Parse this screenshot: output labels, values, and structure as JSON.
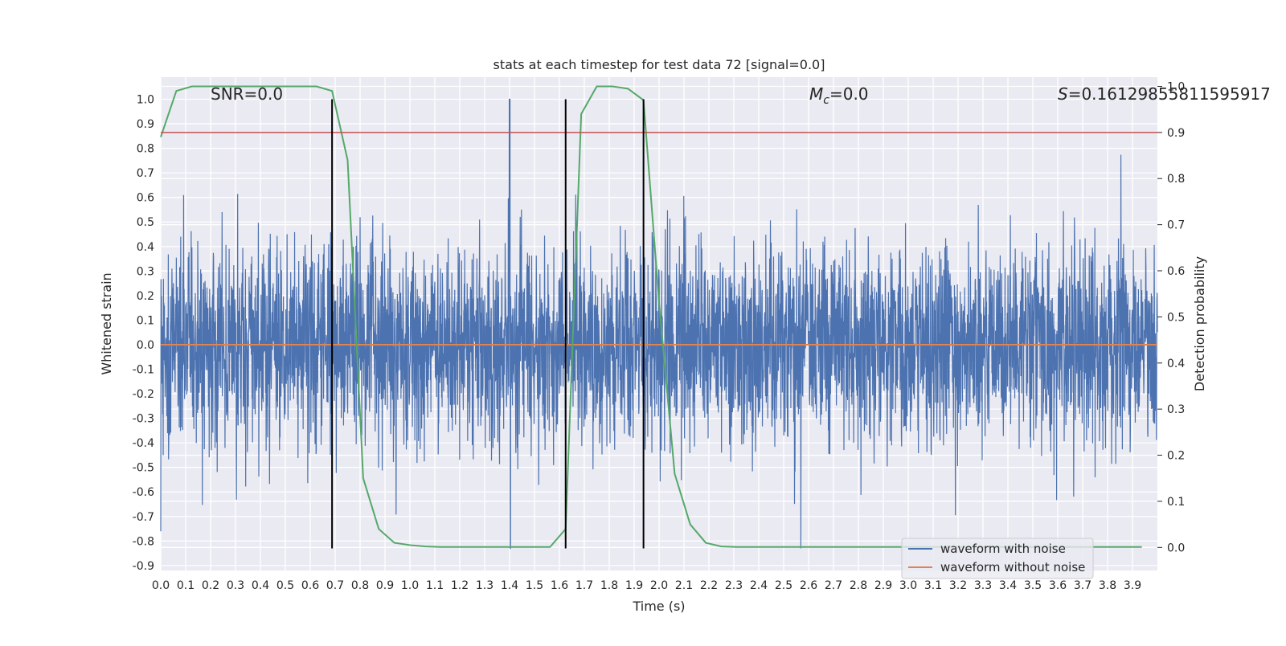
{
  "chart_data": {
    "type": "line",
    "title": "stats at each timestep for test data 72 [signal=0.0]",
    "xlabel": "Time (s)",
    "ylabel_left": "Whitened strain",
    "ylabel_right": "Detection probability",
    "xlim": [
      0.0,
      4.0
    ],
    "ylim_left": [
      -0.92,
      1.09
    ],
    "ylim_right": [
      -0.05,
      1.02
    ],
    "x_ticks": [
      "0.0",
      "0.1",
      "0.2",
      "0.3",
      "0.4",
      "0.5",
      "0.6",
      "0.7",
      "0.8",
      "0.9",
      "1.0",
      "1.1",
      "1.2",
      "1.3",
      "1.4",
      "1.5",
      "1.6",
      "1.7",
      "1.8",
      "1.9",
      "2.0",
      "2.1",
      "2.2",
      "2.3",
      "2.4",
      "2.5",
      "2.6",
      "2.7",
      "2.8",
      "2.9",
      "3.0",
      "3.1",
      "3.2",
      "3.3",
      "3.4",
      "3.5",
      "3.6",
      "3.7",
      "3.8",
      "3.9"
    ],
    "y_ticks_left": [
      "-0.9",
      "-0.8",
      "-0.7",
      "-0.6",
      "-0.5",
      "-0.4",
      "-0.3",
      "-0.2",
      "-0.1",
      "0.0",
      "0.1",
      "0.2",
      "0.3",
      "0.4",
      "0.5",
      "0.6",
      "0.7",
      "0.8",
      "0.9",
      "1.0"
    ],
    "y_ticks_right": [
      "0.0",
      "0.1",
      "0.2",
      "0.3",
      "0.4",
      "0.5",
      "0.6",
      "0.7",
      "0.8",
      "0.9",
      "1.0"
    ],
    "grid": true,
    "legend_position": "lower-right",
    "annotations": {
      "snr": "SNR=0.0",
      "mc_symbol": "M",
      "mc_sub": "c",
      "mc_value": "=0.0",
      "s_symbol": "S",
      "s_value": "=0.16129855811595917"
    },
    "series": [
      {
        "name": "waveform with noise",
        "axis": "left",
        "color": "#4c72b0",
        "style": "dense noise, roughly gaussian with std 0.2, spikes from about -0.83 to 1.0",
        "peak": {
          "x": 1.4,
          "max": 1.0,
          "min": -0.83
        }
      },
      {
        "name": "waveform without noise",
        "axis": "left",
        "color": "#dd8452",
        "x": [
          0.0,
          4.0
        ],
        "y": [
          0.0,
          0.0
        ]
      },
      {
        "axis": "right",
        "color": "#55a868",
        "x": [
          0.0,
          0.0625,
          0.125,
          0.1875,
          0.25,
          0.3125,
          0.375,
          0.4375,
          0.5,
          0.5625,
          0.625,
          0.6875,
          0.75,
          0.8125,
          0.875,
          0.9375,
          1.0,
          1.0625,
          1.125,
          1.1875,
          1.25,
          1.3125,
          1.375,
          1.4375,
          1.5,
          1.5625,
          1.625,
          1.6875,
          1.75,
          1.8125,
          1.875,
          1.9375,
          2.0,
          2.0625,
          2.125,
          2.1875,
          2.25,
          2.3125,
          2.375,
          2.4375,
          2.5,
          2.5625,
          2.625,
          2.6875,
          2.75,
          2.8125,
          2.875,
          2.9375,
          3.0,
          3.0625,
          3.125,
          3.1875,
          3.25,
          3.3125,
          3.375,
          3.4375,
          3.5,
          3.5625,
          3.625,
          3.6875,
          3.75,
          3.8125,
          3.875,
          3.9375
        ],
        "y": [
          0.89,
          0.99,
          1.0,
          1.0,
          1.0,
          1.0,
          1.0,
          1.0,
          1.0,
          1.0,
          1.0,
          0.99,
          0.84,
          0.15,
          0.04,
          0.01,
          0.005,
          0.002,
          0.001,
          0.001,
          0.001,
          0.001,
          0.001,
          0.001,
          0.001,
          0.001,
          0.04,
          0.94,
          1.0,
          1.0,
          0.995,
          0.97,
          0.53,
          0.16,
          0.05,
          0.01,
          0.002,
          0.001,
          0.001,
          0.001,
          0.001,
          0.001,
          0.001,
          0.001,
          0.001,
          0.001,
          0.001,
          0.001,
          0.001,
          0.001,
          0.001,
          0.001,
          0.001,
          0.001,
          0.001,
          0.001,
          0.001,
          0.001,
          0.001,
          0.001,
          0.001,
          0.001,
          0.001,
          0.001
        ]
      }
    ],
    "threshold": {
      "axis": "right",
      "y": 0.9,
      "color": "#c44e52"
    },
    "vertical_lines": {
      "x": [
        0.6875,
        1.625,
        1.9375
      ],
      "color": "#000000",
      "y_range_left": [
        -0.83,
        1.0
      ]
    }
  }
}
